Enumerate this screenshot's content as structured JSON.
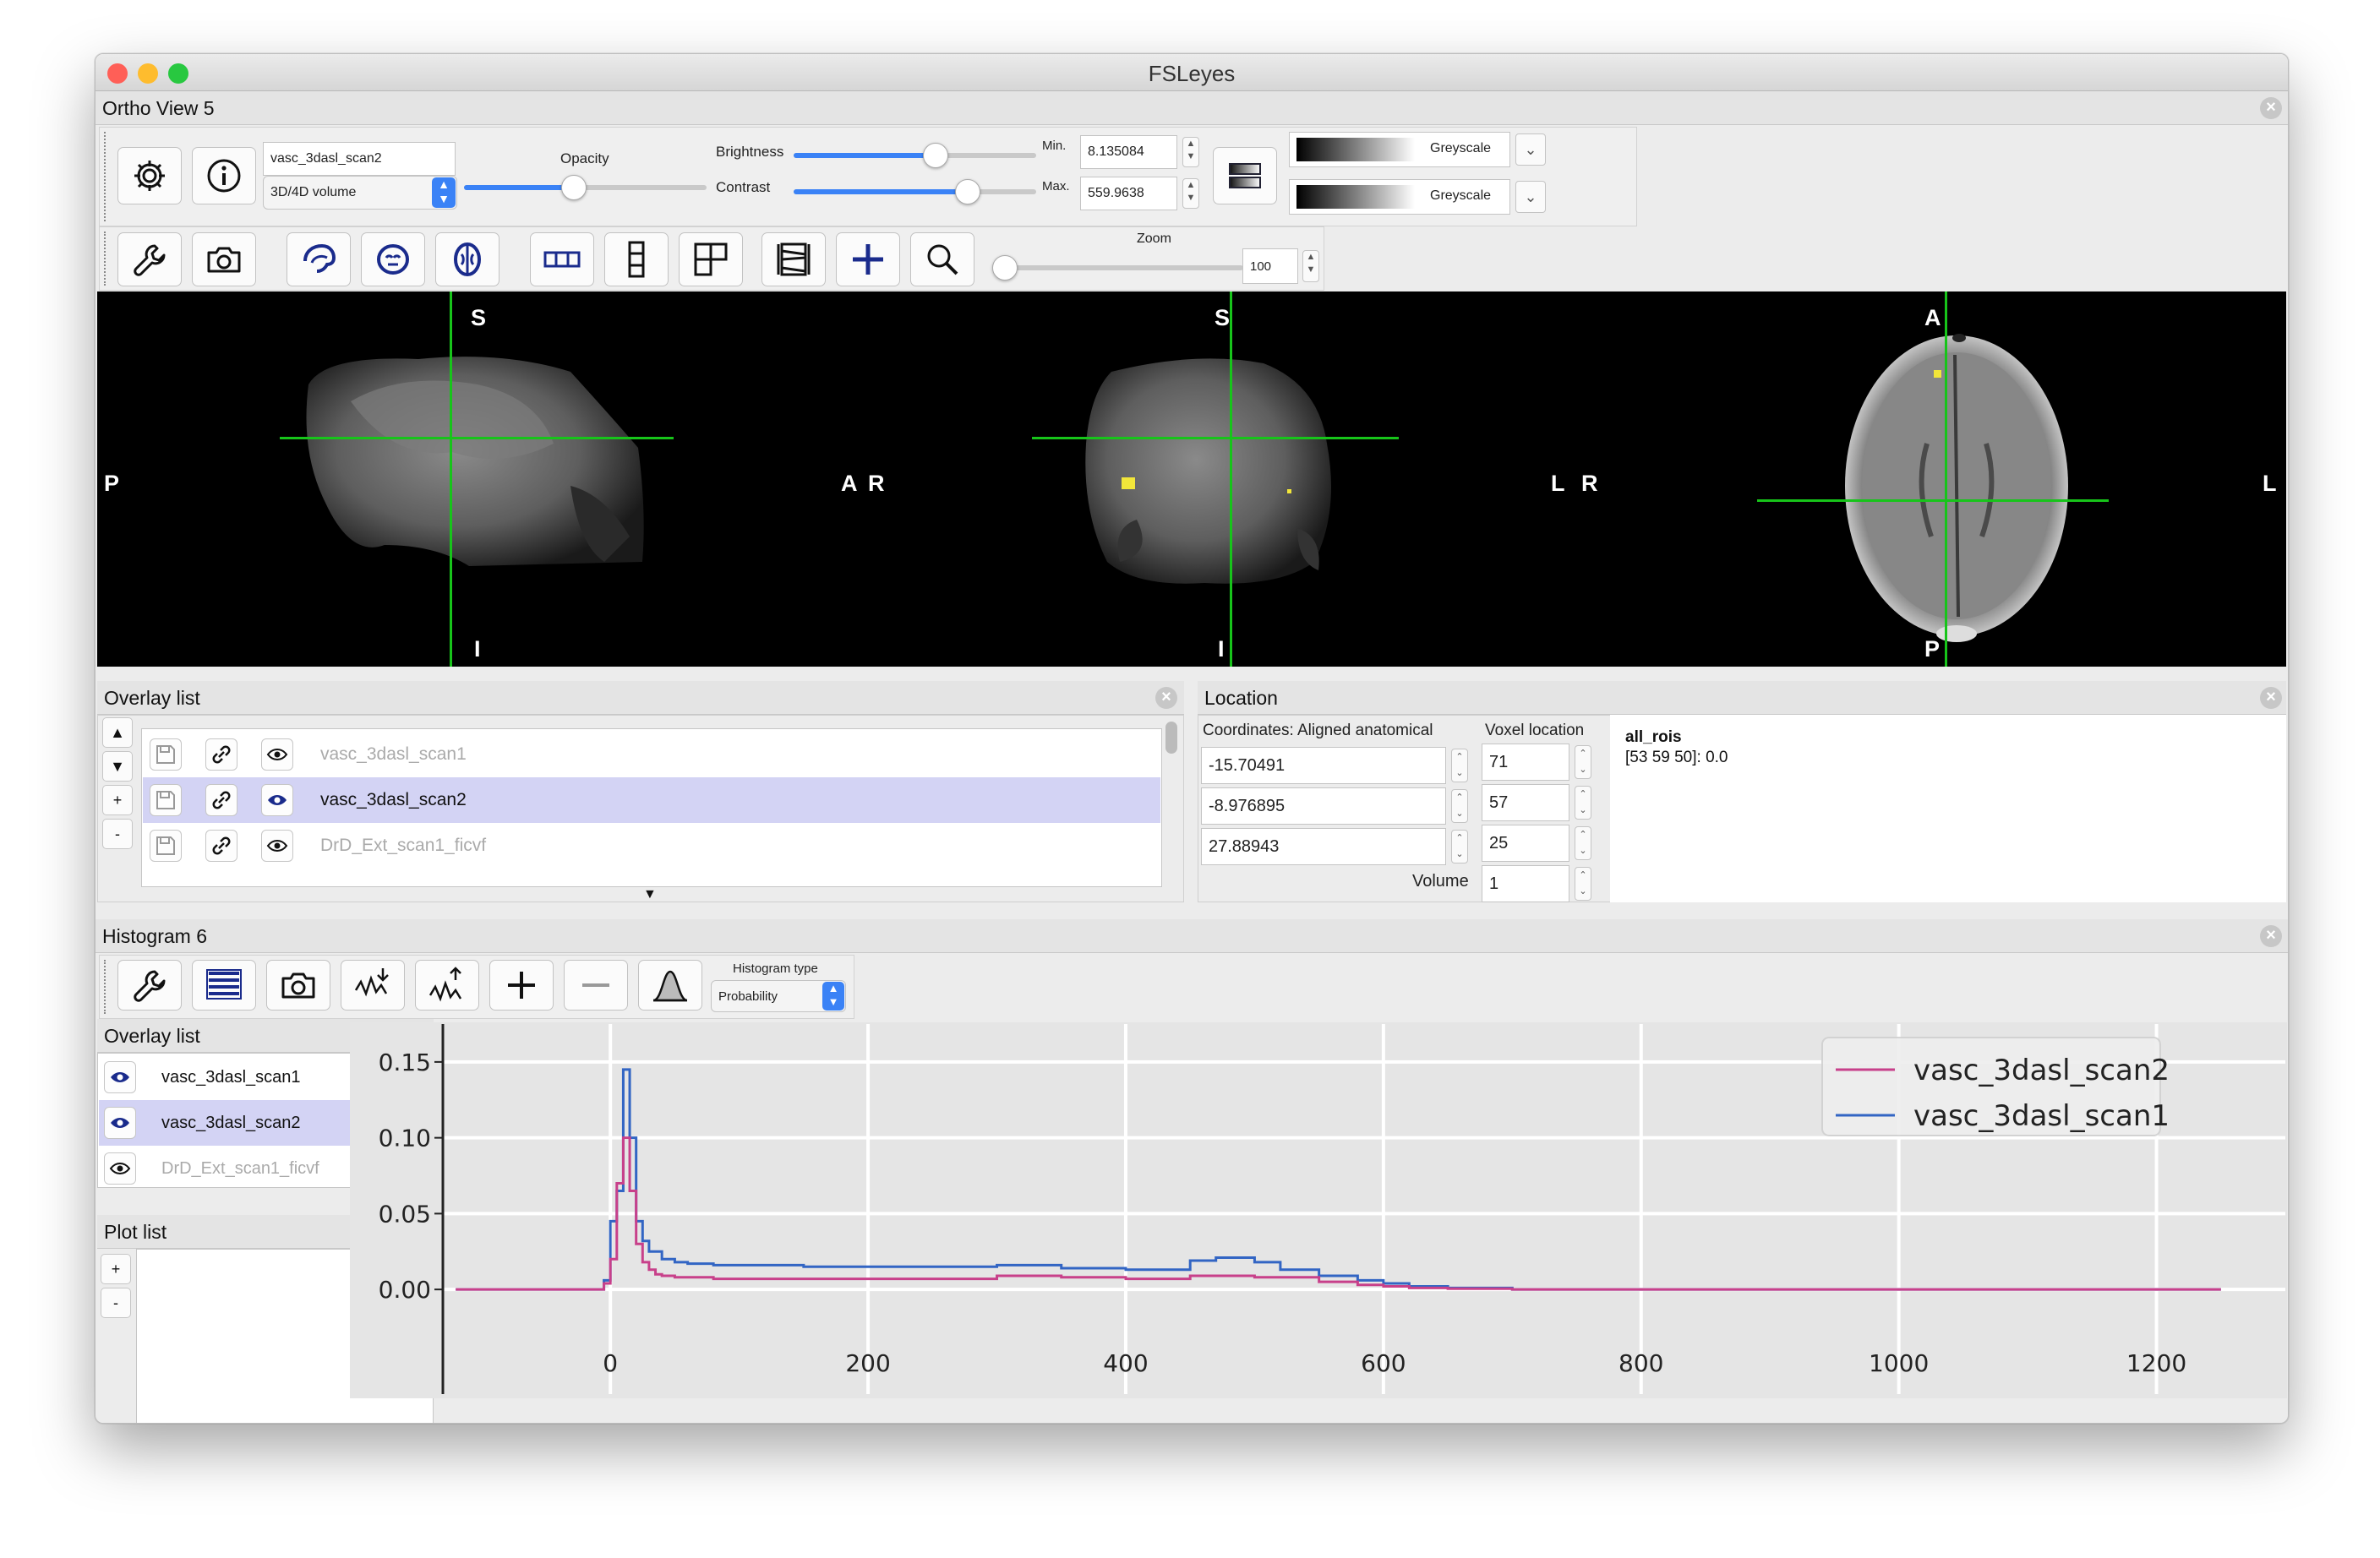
{
  "window": {
    "title": "FSLeyes",
    "controls": {
      "close": "#ff5f57",
      "minimize": "#febc2e",
      "maximize": "#28c840"
    }
  },
  "ortho": {
    "title": "Ortho View 5",
    "overlay_name": "vasc_3dasl_scan2",
    "overlay_type": "3D/4D volume",
    "labels": {
      "opacity": "Opacity",
      "brightness": "Brightness",
      "contrast": "Contrast",
      "min": "Min.",
      "max": "Max.",
      "zoom": "Zoom"
    },
    "min_value": "8.135084",
    "max_value": "559.9638",
    "zoom_value": "100",
    "opacity_level": 0.45,
    "brightness_level": 0.58,
    "contrast_level": 0.72,
    "zoom_level": 0.0,
    "colormaps": [
      "Greyscale",
      "Greyscale"
    ],
    "icons": [
      "gear-icon",
      "info-icon",
      "wrench-icon",
      "camera-icon",
      "sagittal-toggle-icon",
      "coronal-toggle-icon",
      "axial-toggle-icon",
      "horizontal-layout-icon",
      "vertical-layout-icon",
      "grid-layout-icon",
      "movie-mode-icon",
      "cursor-toggle-icon",
      "zoom-icon"
    ],
    "views": [
      {
        "top": "S",
        "bottom": "I",
        "left": "P",
        "right": "A"
      },
      {
        "top": "S",
        "bottom": "I",
        "left": "R",
        "right": "L"
      },
      {
        "top": "A",
        "bottom": "P",
        "left": "R",
        "right": "L"
      }
    ],
    "cursor_color": "#17c41a"
  },
  "overlay_list": {
    "title": "Overlay list",
    "items": [
      {
        "name": "vasc_3dasl_scan1",
        "visible": false,
        "selected": false
      },
      {
        "name": "vasc_3dasl_scan2",
        "visible": true,
        "selected": true
      },
      {
        "name": "DrD_Ext_scan1_ficvf",
        "visible": false,
        "selected": false
      }
    ],
    "buttons": [
      "▲",
      "▼",
      "+",
      "-"
    ]
  },
  "location": {
    "title": "Location",
    "coords_label": "Coordinates: Aligned anatomical",
    "voxel_label": "Voxel location",
    "coords": [
      "-15.70491",
      "-8.976895",
      "27.88943"
    ],
    "voxels": [
      "71",
      "57",
      "25"
    ],
    "volume_label": "Volume",
    "volume": "1",
    "info_name": "all_rois",
    "info_value": "[53 59 50]: 0.0"
  },
  "histogram": {
    "title": "Histogram 6",
    "type_label": "Histogram type",
    "type_value": "Probability",
    "icons": [
      "wrench-icon",
      "list-icon",
      "camera-icon",
      "import-data-icon",
      "export-data-icon",
      "add-icon",
      "remove-icon",
      "gaussian-icon"
    ],
    "overlay_list_title": "Overlay list",
    "overlays": [
      {
        "name": "vasc_3dasl_scan1",
        "visible": true,
        "selected": false
      },
      {
        "name": "vasc_3dasl_scan2",
        "visible": true,
        "selected": true
      },
      {
        "name": "DrD_Ext_scan1_ficvf",
        "visible": false,
        "selected": false
      }
    ],
    "plot_list_title": "Plot list",
    "plot_buttons": [
      "+",
      "-"
    ]
  },
  "chart_data": {
    "type": "line",
    "step": true,
    "x_ticks": [
      "0",
      "200",
      "400",
      "600",
      "800",
      "1000",
      "1200"
    ],
    "y_ticks": [
      "0.00",
      "0.05",
      "0.10",
      "0.15"
    ],
    "xlim": [
      -130,
      1300
    ],
    "ylim": [
      -0.03,
      0.175
    ],
    "grid": true,
    "legend_position": "top-right",
    "series": [
      {
        "name": "vasc_3dasl_scan2",
        "color": "#c8408a",
        "x": [
          -120,
          -15,
          -5,
          0,
          5,
          10,
          15,
          20,
          25,
          30,
          35,
          40,
          50,
          60,
          80,
          100,
          150,
          200,
          250,
          300,
          350,
          400,
          450,
          500,
          550,
          580,
          600,
          620,
          650,
          700,
          1250
        ],
        "y": [
          0,
          0,
          0.004,
          0.02,
          0.07,
          0.1,
          0.065,
          0.03,
          0.018,
          0.013,
          0.01,
          0.009,
          0.008,
          0.008,
          0.007,
          0.007,
          0.007,
          0.007,
          0.007,
          0.009,
          0.008,
          0.007,
          0.009,
          0.008,
          0.005,
          0.003,
          0.002,
          0.001,
          0.0005,
          0,
          0
        ]
      },
      {
        "name": "vasc_3dasl_scan1",
        "color": "#3265c4",
        "x": [
          -120,
          -15,
          -5,
          0,
          5,
          10,
          15,
          20,
          25,
          30,
          40,
          50,
          60,
          80,
          100,
          150,
          200,
          250,
          300,
          350,
          400,
          450,
          470,
          500,
          520,
          550,
          580,
          600,
          620,
          650,
          700,
          1250
        ],
        "y": [
          0,
          0,
          0.006,
          0.045,
          0.065,
          0.145,
          0.1,
          0.045,
          0.032,
          0.025,
          0.02,
          0.018,
          0.017,
          0.016,
          0.016,
          0.015,
          0.015,
          0.015,
          0.016,
          0.014,
          0.013,
          0.019,
          0.021,
          0.018,
          0.013,
          0.009,
          0.006,
          0.004,
          0.002,
          0.001,
          0,
          0
        ]
      }
    ]
  }
}
